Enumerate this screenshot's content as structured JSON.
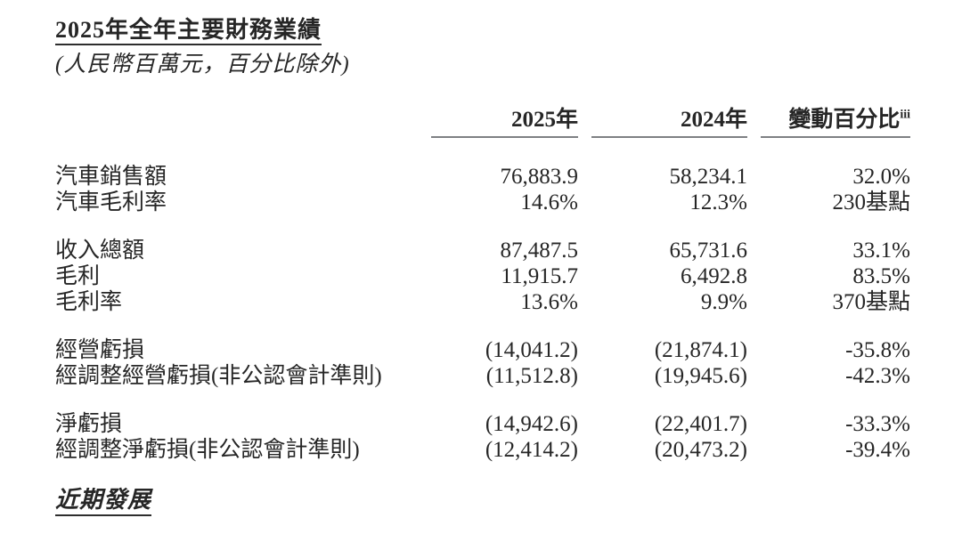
{
  "page": {
    "title": "2025年全年主要財務業績",
    "subtitle": "(人民幣百萬元，百分比除外)",
    "footer_heading": "近期發展"
  },
  "table": {
    "columns": [
      "2025年",
      "2024年",
      "變動百分比"
    ],
    "change_footnote_marker": "iii",
    "groups": [
      {
        "rows": [
          {
            "label": "汽車銷售額",
            "y2025": "76,883.9",
            "y2024": "58,234.1",
            "change": "32.0%"
          },
          {
            "label": "汽車毛利率",
            "y2025": "14.6%",
            "y2024": "12.3%",
            "change": "230基點"
          }
        ]
      },
      {
        "rows": [
          {
            "label": "收入總額",
            "y2025": "87,487.5",
            "y2024": "65,731.6",
            "change": "33.1%"
          },
          {
            "label": "毛利",
            "y2025": "11,915.7",
            "y2024": "6,492.8",
            "change": "83.5%"
          },
          {
            "label": "毛利率",
            "y2025": "13.6%",
            "y2024": "9.9%",
            "change": "370基點"
          }
        ]
      },
      {
        "rows": [
          {
            "label": "經營虧損",
            "y2025": "(14,041.2)",
            "y2024": "(21,874.1)",
            "change": "-35.8%"
          },
          {
            "label": "經調整經營虧損(非公認會計準則)",
            "y2025": "(11,512.8)",
            "y2024": "(19,945.6)",
            "change": "-42.3%"
          }
        ]
      },
      {
        "rows": [
          {
            "label": "淨虧損",
            "y2025": "(14,942.6)",
            "y2024": "(22,401.7)",
            "change": "-33.3%"
          },
          {
            "label": "經調整淨虧損(非公認會計準則)",
            "y2025": "(12,414.2)",
            "y2024": "(20,473.2)",
            "change": "-39.4%"
          }
        ]
      }
    ]
  },
  "colors": {
    "text": "#262626",
    "header_rule": "#7e8083",
    "title_rule": "#2e2e2e",
    "background": "#ffffff"
  }
}
